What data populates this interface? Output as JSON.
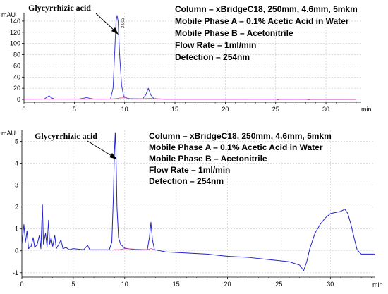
{
  "chart_data": [
    {
      "type": "line",
      "yunit": "mAU",
      "xunit": "min",
      "xlim": [
        0,
        33.5
      ],
      "ylim": [
        -5,
        155
      ],
      "xticks": [
        0,
        5,
        10,
        15,
        20,
        25,
        30
      ],
      "yticks": [
        0,
        20,
        40,
        60,
        80,
        100,
        120,
        140
      ],
      "peak_label": "2.903",
      "annotation": "Glycyrrhizic acid",
      "annotation_target": {
        "x": 9.2,
        "y": 130
      },
      "conditions": [
        "Column – xBridgeC18, 250mm, 4.6mm, 5mkm",
        "Mobile Phase A – 0.1% Acetic Acid in Water",
        "Mobile Phase B – Acetonitrile",
        "Flow Rate – 1ml/min",
        "Detection – 254nm"
      ],
      "series": [
        {
          "color": "#3a3ad8",
          "points": [
            [
              0,
              0.5
            ],
            [
              1,
              0.5
            ],
            [
              2,
              0.8
            ],
            [
              2.3,
              4
            ],
            [
              2.5,
              6.5
            ],
            [
              2.7,
              3
            ],
            [
              3,
              0.8
            ],
            [
              4,
              0.6
            ],
            [
              5.5,
              0.8
            ],
            [
              5.9,
              2
            ],
            [
              6.2,
              3.5
            ],
            [
              6.5,
              2
            ],
            [
              7,
              0.6
            ],
            [
              8,
              0.5
            ],
            [
              8.6,
              0.8
            ],
            [
              8.85,
              20
            ],
            [
              9,
              80
            ],
            [
              9.15,
              140
            ],
            [
              9.25,
              150
            ],
            [
              9.35,
              140
            ],
            [
              9.5,
              80
            ],
            [
              9.7,
              25
            ],
            [
              9.9,
              6
            ],
            [
              10.3,
              1.5
            ],
            [
              11,
              0.8
            ],
            [
              11.8,
              1.2
            ],
            [
              12.1,
              8
            ],
            [
              12.35,
              20
            ],
            [
              12.6,
              8
            ],
            [
              12.9,
              1.5
            ],
            [
              14,
              0.4
            ],
            [
              20,
              0.3
            ],
            [
              25,
              0.5
            ],
            [
              25.2,
              -0.5
            ],
            [
              25.5,
              0.5
            ],
            [
              28,
              0.4
            ],
            [
              28.3,
              -0.5
            ],
            [
              28.6,
              0.4
            ],
            [
              30,
              0.2
            ],
            [
              33,
              0.2
            ]
          ]
        },
        {
          "color": "#d04c9a",
          "points": [
            [
              0,
              0.5
            ],
            [
              8.6,
              0.8
            ],
            [
              9.1,
              1.5
            ],
            [
              9.5,
              2.5
            ],
            [
              10,
              3
            ],
            [
              10.5,
              1.8
            ],
            [
              11.5,
              1.2
            ],
            [
              12,
              1.5
            ],
            [
              12.5,
              2.2
            ],
            [
              13,
              1
            ],
            [
              14,
              0.4
            ],
            [
              33,
              0.2
            ]
          ]
        }
      ]
    },
    {
      "type": "line",
      "yunit": "mAU",
      "xunit": "min",
      "xlim": [
        0,
        34.3
      ],
      "ylim": [
        -1.2,
        5.5
      ],
      "xticks": [
        0,
        5,
        10,
        15,
        20,
        25,
        30
      ],
      "yticks": [
        -1,
        0,
        1,
        2,
        3,
        4,
        5
      ],
      "annotation": "Glycyrrhizic acid",
      "annotation_target": {
        "x": 9,
        "y": 4.7
      },
      "conditions": [
        "Column – xBridgeC18, 250mm, 4.6mm, 5mkm",
        "Mobile Phase A – 0.1% Acetic Acid in Water",
        "Mobile Phase B – Acetonitrile",
        "Flow Rate – 1ml/min",
        "Detection – 254nm"
      ],
      "series": [
        {
          "color": "#2222cc",
          "points": [
            [
              0,
              0.3
            ],
            [
              0.2,
              1.2
            ],
            [
              0.35,
              0.4
            ],
            [
              0.5,
              0.9
            ],
            [
              0.65,
              0.1
            ],
            [
              0.9,
              0.2
            ],
            [
              1.1,
              0.6
            ],
            [
              1.25,
              0.15
            ],
            [
              1.5,
              0.3
            ],
            [
              1.7,
              0.7
            ],
            [
              1.85,
              0.1
            ],
            [
              2,
              2.1
            ],
            [
              2.1,
              0.3
            ],
            [
              2.3,
              0.8
            ],
            [
              2.45,
              0.2
            ],
            [
              2.6,
              1.4
            ],
            [
              2.7,
              0.3
            ],
            [
              2.85,
              0.6
            ],
            [
              3,
              0.2
            ],
            [
              3.2,
              0.7
            ],
            [
              3.35,
              0.1
            ],
            [
              3.6,
              0.3
            ],
            [
              3.8,
              0.5
            ],
            [
              4,
              0.1
            ],
            [
              4.3,
              0.15
            ],
            [
              4.6,
              0.05
            ],
            [
              5,
              0.1
            ],
            [
              6,
              0.05
            ],
            [
              6.4,
              0.25
            ],
            [
              6.6,
              0.05
            ],
            [
              7.5,
              0.05
            ],
            [
              8.5,
              0.05
            ],
            [
              8.75,
              0.4
            ],
            [
              8.9,
              2.5
            ],
            [
              9,
              4.5
            ],
            [
              9.08,
              5.4
            ],
            [
              9.15,
              4.5
            ],
            [
              9.25,
              2
            ],
            [
              9.4,
              0.6
            ],
            [
              9.6,
              0.3
            ],
            [
              10,
              0.12
            ],
            [
              11,
              0.05
            ],
            [
              12.2,
              0.05
            ],
            [
              12.4,
              0.6
            ],
            [
              12.55,
              1.3
            ],
            [
              12.7,
              0.5
            ],
            [
              12.9,
              0.05
            ],
            [
              14,
              -0.05
            ],
            [
              16,
              -0.1
            ],
            [
              18,
              -0.15
            ],
            [
              20,
              -0.25
            ],
            [
              22,
              -0.3
            ],
            [
              24,
              -0.4
            ],
            [
              26,
              -0.5
            ],
            [
              27,
              -0.65
            ],
            [
              27.4,
              -0.9
            ],
            [
              27.7,
              -0.5
            ],
            [
              28,
              0.1
            ],
            [
              28.5,
              0.8
            ],
            [
              29,
              1.2
            ],
            [
              29.5,
              1.5
            ],
            [
              30,
              1.7
            ],
            [
              30.5,
              1.75
            ],
            [
              31,
              1.8
            ],
            [
              31.4,
              1.9
            ],
            [
              31.7,
              1.7
            ],
            [
              32,
              1.2
            ],
            [
              32.3,
              0.6
            ],
            [
              32.6,
              0.05
            ],
            [
              33,
              -0.15
            ],
            [
              34.3,
              -0.15
            ]
          ]
        },
        {
          "color": "#d04c9a",
          "points": [
            [
              8.9,
              0.05
            ],
            [
              9.5,
              0.05
            ],
            [
              10,
              0.1
            ],
            [
              12.2,
              0.05
            ],
            [
              12.55,
              0.1
            ],
            [
              12.9,
              0.05
            ]
          ]
        }
      ]
    }
  ]
}
